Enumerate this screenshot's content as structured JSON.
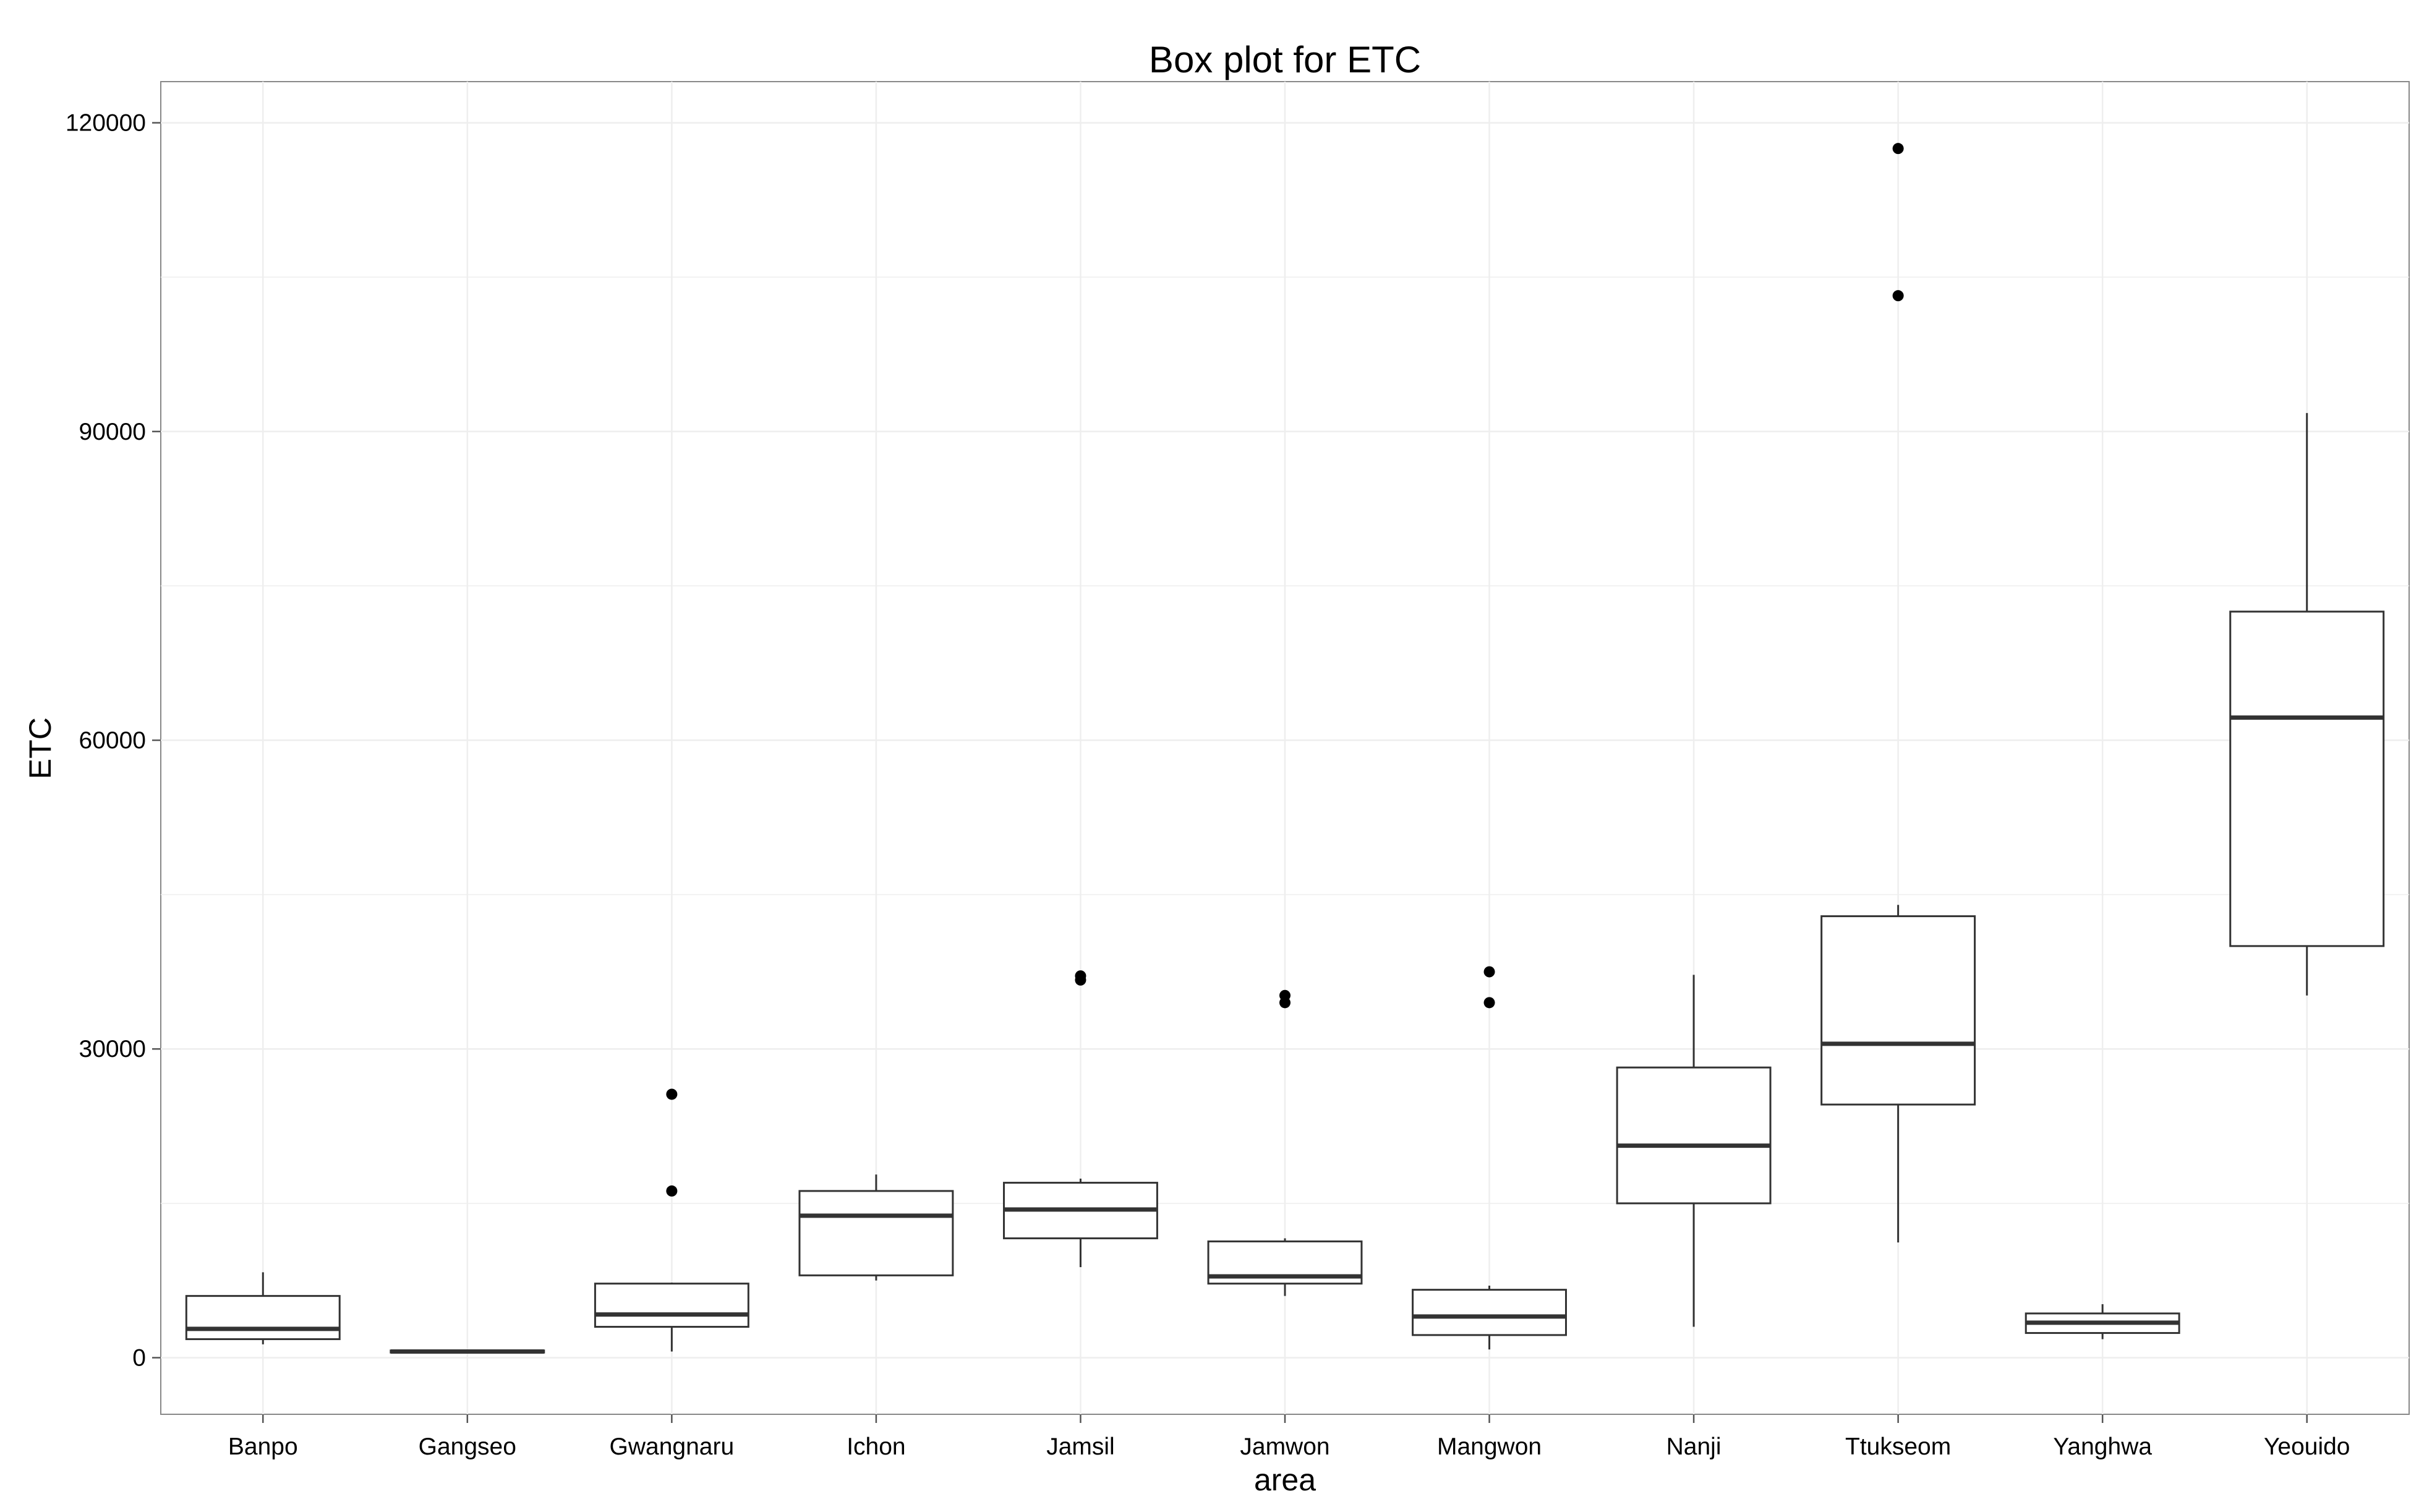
{
  "chart_data": {
    "type": "box",
    "title": "Box plot for ETC",
    "xlabel": "area",
    "ylabel": "ETC",
    "ylim": [
      -5500,
      124000
    ],
    "yticks": [
      0,
      30000,
      60000,
      90000,
      120000
    ],
    "ytick_labels": [
      "0",
      "30000",
      "60000",
      "90000",
      "120000"
    ],
    "grid": true,
    "legend": "none",
    "categories": [
      "Banpo",
      "Gangseo",
      "Gwangnaru",
      "Ichon",
      "Jamsil",
      "Jamwon",
      "Mangwon",
      "Nanji",
      "Ttukseom",
      "Yanghwa",
      "Yeouido"
    ],
    "boxes": [
      {
        "whisker_low": 1300,
        "q1": 1800,
        "median": 2800,
        "q3": 6000,
        "whisker_high": 8300,
        "outliers": []
      },
      {
        "whisker_low": 400,
        "q1": 500,
        "median": 600,
        "q3": 700,
        "whisker_high": 800,
        "outliers": []
      },
      {
        "whisker_low": 600,
        "q1": 3000,
        "median": 4200,
        "q3": 7200,
        "whisker_high": 7300,
        "outliers": [
          16200,
          25600
        ]
      },
      {
        "whisker_low": 7500,
        "q1": 8000,
        "median": 13800,
        "q3": 16200,
        "whisker_high": 17800,
        "outliers": []
      },
      {
        "whisker_low": 8800,
        "q1": 11600,
        "median": 14400,
        "q3": 17000,
        "whisker_high": 17400,
        "outliers": [
          36700,
          37100
        ]
      },
      {
        "whisker_low": 6000,
        "q1": 7200,
        "median": 7900,
        "q3": 11300,
        "whisker_high": 11600,
        "outliers": [
          34500,
          35200
        ]
      },
      {
        "whisker_low": 800,
        "q1": 2200,
        "median": 4000,
        "q3": 6600,
        "whisker_high": 7000,
        "outliers": [
          34500,
          37500
        ]
      },
      {
        "whisker_low": 3000,
        "q1": 15000,
        "median": 20600,
        "q3": 28200,
        "whisker_high": 37200,
        "outliers": []
      },
      {
        "whisker_low": 11200,
        "q1": 24600,
        "median": 30500,
        "q3": 42900,
        "whisker_high": 44000,
        "outliers": [
          103200,
          117500
        ]
      },
      {
        "whisker_low": 1800,
        "q1": 2400,
        "median": 3400,
        "q3": 4300,
        "whisker_high": 5200,
        "outliers": []
      },
      {
        "whisker_low": 35200,
        "q1": 40000,
        "median": 62200,
        "q3": 72500,
        "whisker_high": 91800,
        "outliers": []
      }
    ]
  },
  "colors": {
    "panel_border": "#888888",
    "grid": "#eeeeee",
    "box": "#333333",
    "outlier": "#000000"
  }
}
